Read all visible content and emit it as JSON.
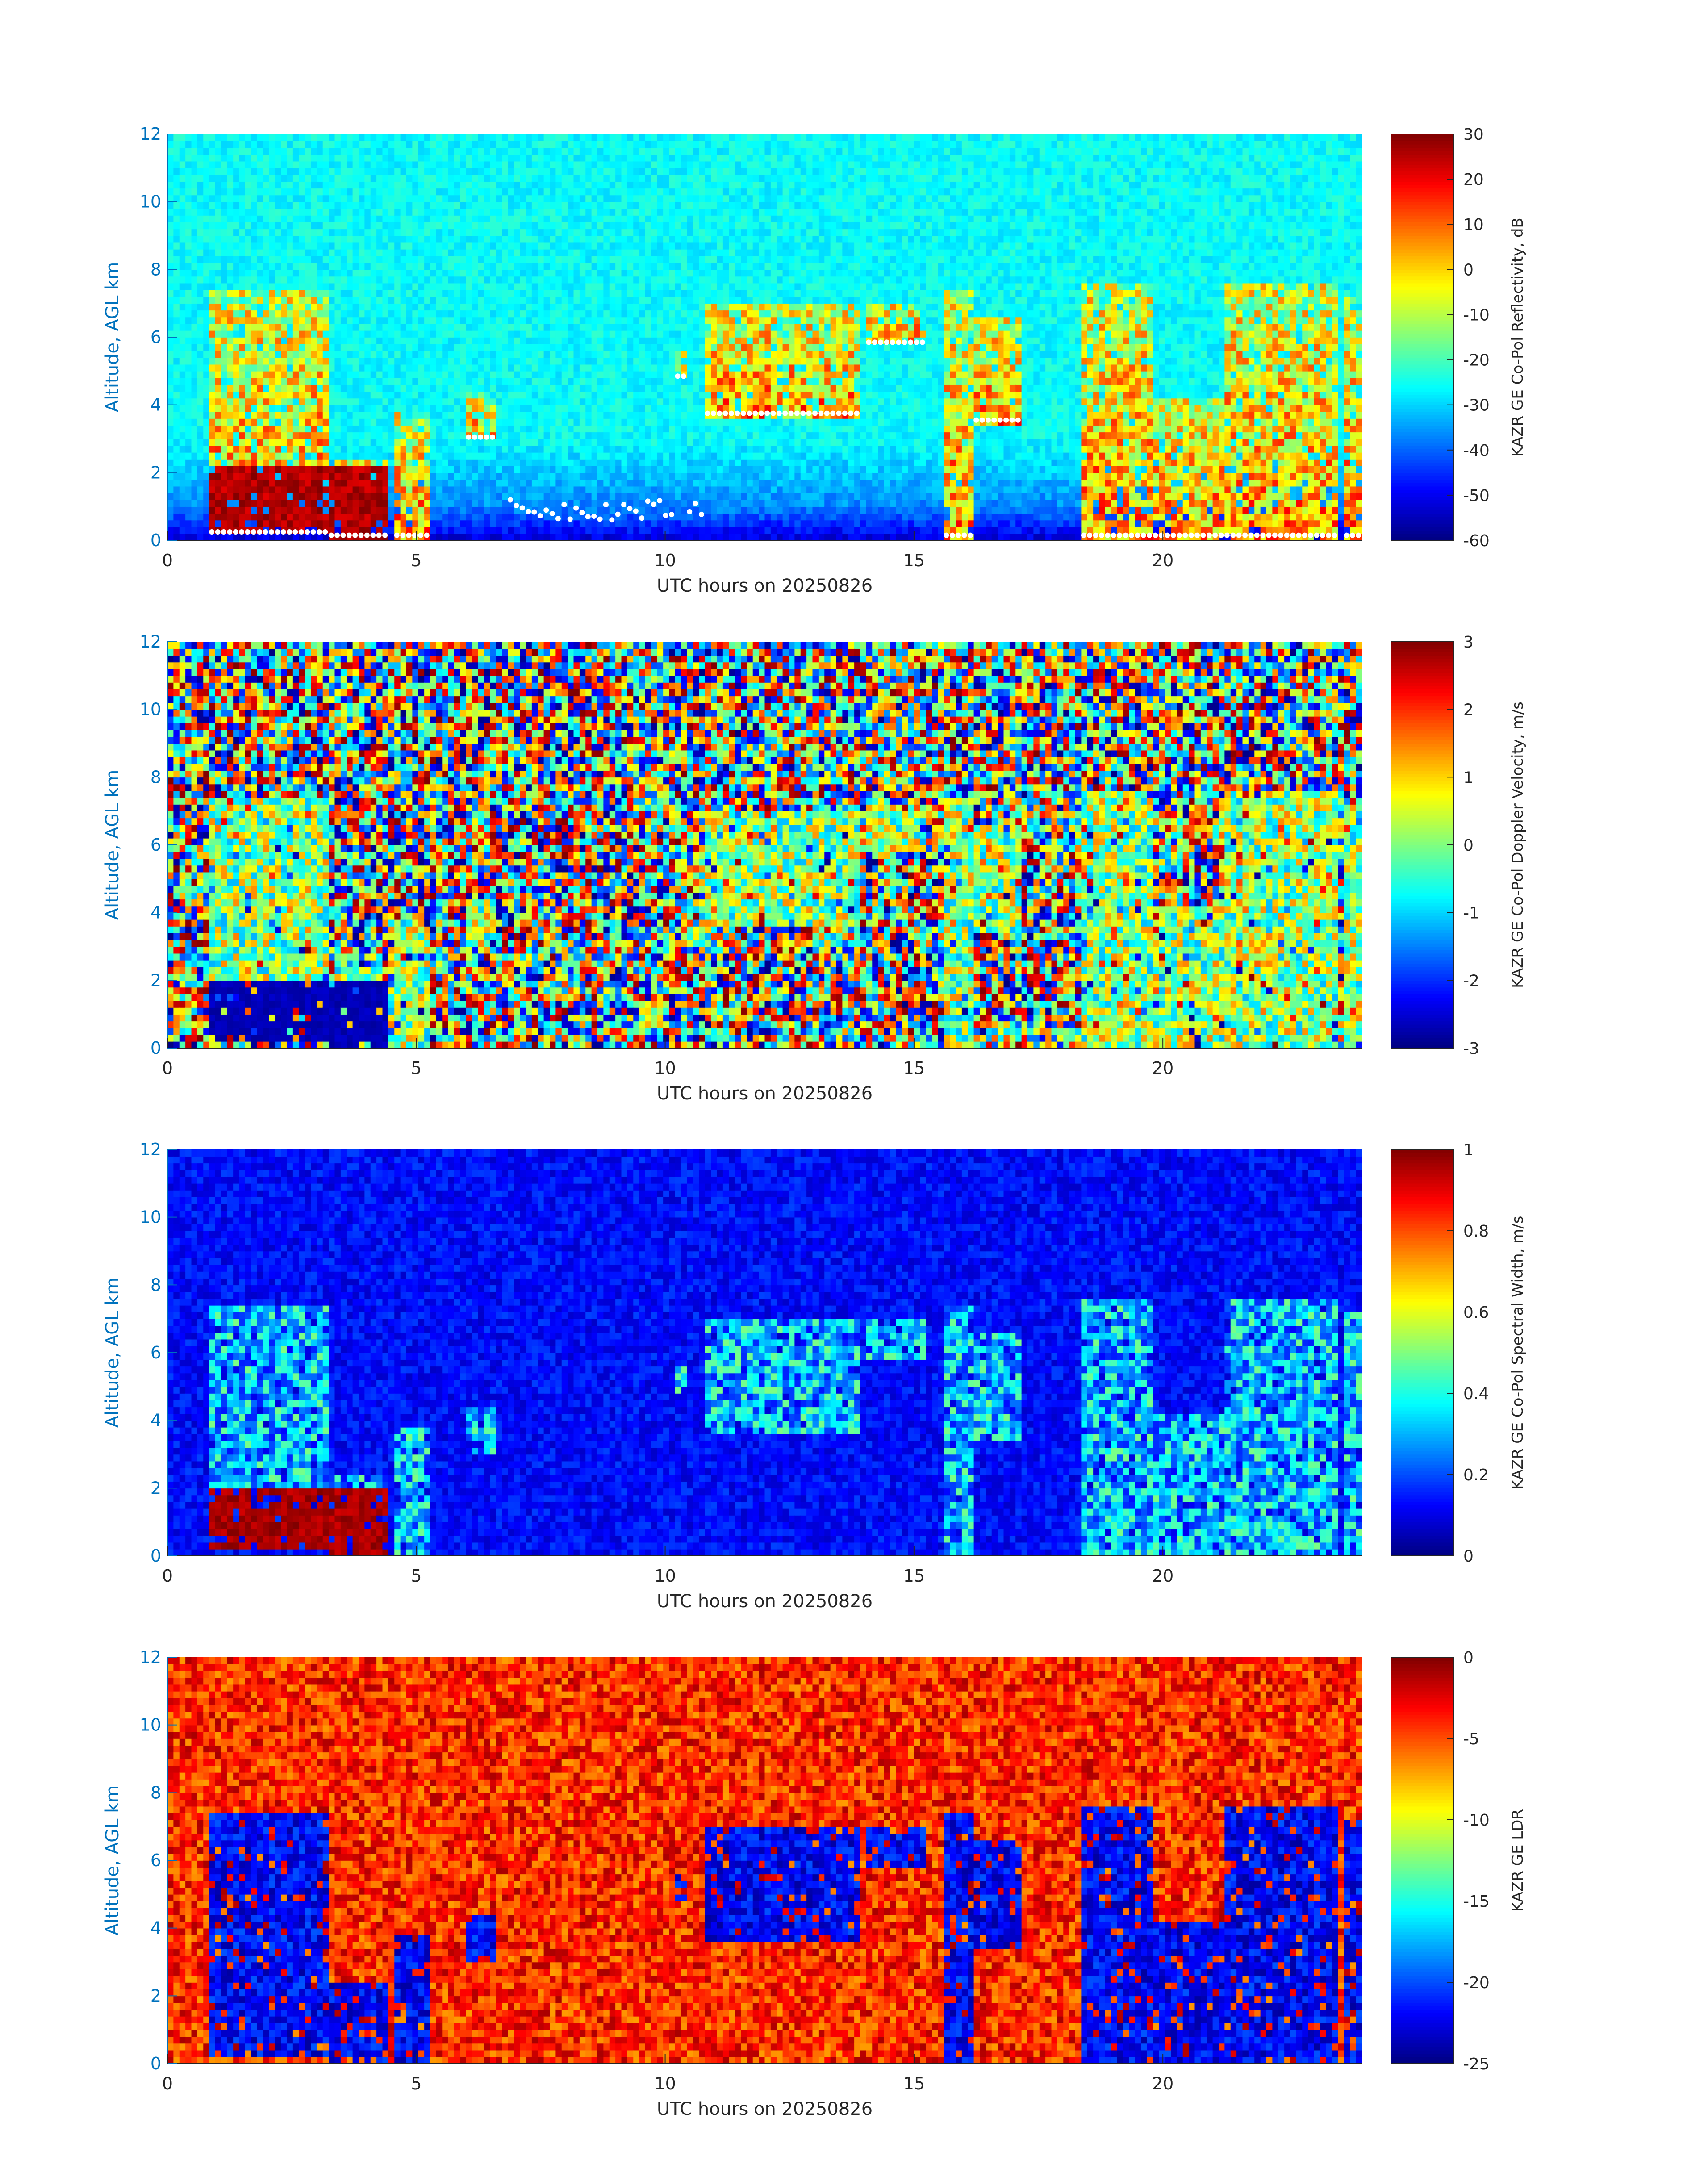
{
  "chart_data": [
    {
      "type": "heatmap",
      "xlabel": "UTC hours on 20250826",
      "ylabel": "Altitude, AGL km",
      "colorbar_label": "KAZR GE Co-Pol Reflectivity, dB",
      "xlim": [
        0,
        24
      ],
      "ylim": [
        0,
        12
      ],
      "xticks": [
        "0",
        "5",
        "10",
        "15",
        "20"
      ],
      "yticks": [
        "0",
        "2",
        "4",
        "6",
        "8",
        "10",
        "12"
      ],
      "clim": [
        -60,
        30
      ],
      "cbticks": [
        "-60",
        "-50",
        "-40",
        "-30",
        "-20",
        "-10",
        "0",
        "10",
        "20",
        "30"
      ],
      "colormap": "jet",
      "background": "noise cyan above ~2 km fading to dark blue near surface",
      "overlay": "white cloud-base markers"
    },
    {
      "type": "heatmap",
      "xlabel": "UTC hours on 20250826",
      "ylabel": "Altitude, AGL km",
      "colorbar_label": "KAZR GE Co-Pol Doppler Velocity, m/s",
      "xlim": [
        0,
        24
      ],
      "ylim": [
        0,
        12
      ],
      "xticks": [
        "0",
        "5",
        "10",
        "15",
        "20"
      ],
      "yticks": [
        "0",
        "2",
        "4",
        "6",
        "8",
        "10",
        "12"
      ],
      "clim": [
        -3,
        3
      ],
      "cbticks": [
        "-3",
        "-2",
        "-1",
        "0",
        "1",
        "2",
        "3"
      ],
      "colormap": "jet",
      "background": "random multicolor noise"
    },
    {
      "type": "heatmap",
      "xlabel": "UTC hours on 20250826",
      "ylabel": "Altitude, AGL km",
      "colorbar_label": "KAZR GE Co-Pol Spectral Width, m/s",
      "xlim": [
        0,
        24
      ],
      "ylim": [
        0,
        12
      ],
      "xticks": [
        "0",
        "5",
        "10",
        "15",
        "20"
      ],
      "yticks": [
        "0",
        "2",
        "4",
        "6",
        "8",
        "10",
        "12"
      ],
      "clim": [
        0,
        1
      ],
      "cbticks": [
        "0",
        "0.2",
        "0.4",
        "0.6",
        "0.8",
        "1"
      ],
      "colormap": "jet",
      "background": "noisy dark blue"
    },
    {
      "type": "heatmap",
      "xlabel": "UTC hours on 20250826",
      "ylabel": "Altitude, AGL km",
      "colorbar_label": "KAZR GE LDR",
      "xlim": [
        0,
        24
      ],
      "ylim": [
        0,
        12
      ],
      "xticks": [
        "0",
        "5",
        "10",
        "15",
        "20"
      ],
      "yticks": [
        "0",
        "2",
        "4",
        "6",
        "8",
        "10",
        "12"
      ],
      "clim": [
        -25,
        0
      ],
      "cbticks": [
        "-25",
        "-20",
        "-15",
        "-10",
        "-5",
        "0"
      ],
      "colormap": "jet",
      "background": "noisy orange-red"
    }
  ],
  "cloud_features": [
    {
      "t0": 0.8,
      "t1": 3.2,
      "z0": 0.2,
      "z1": 7.3
    },
    {
      "t0": 3.2,
      "t1": 4.4,
      "z0": 0.1,
      "z1": 2.5
    },
    {
      "t0": 4.6,
      "t1": 5.3,
      "z0": 0.1,
      "z1": 3.8
    },
    {
      "t0": 6.0,
      "t1": 6.6,
      "z0": 3.0,
      "z1": 4.3
    },
    {
      "t0": 10.2,
      "t1": 10.4,
      "z0": 4.8,
      "z1": 5.5
    },
    {
      "t0": 10.8,
      "t1": 13.9,
      "z0": 3.7,
      "z1": 7.0
    },
    {
      "t0": 14.0,
      "t1": 15.2,
      "z0": 5.8,
      "z1": 7.0
    },
    {
      "t0": 15.6,
      "t1": 16.2,
      "z0": 0.1,
      "z1": 7.3
    },
    {
      "t0": 16.2,
      "t1": 17.1,
      "z0": 3.5,
      "z1": 6.6
    },
    {
      "t0": 18.4,
      "t1": 19.8,
      "z0": 0.1,
      "z1": 7.5
    },
    {
      "t0": 19.8,
      "t1": 21.2,
      "z0": 0.1,
      "z1": 4.2
    },
    {
      "t0": 21.2,
      "t1": 23.5,
      "z0": 0.1,
      "z1": 7.6
    },
    {
      "t0": 23.6,
      "t1": 24.0,
      "z0": 0.1,
      "z1": 7.2
    }
  ]
}
